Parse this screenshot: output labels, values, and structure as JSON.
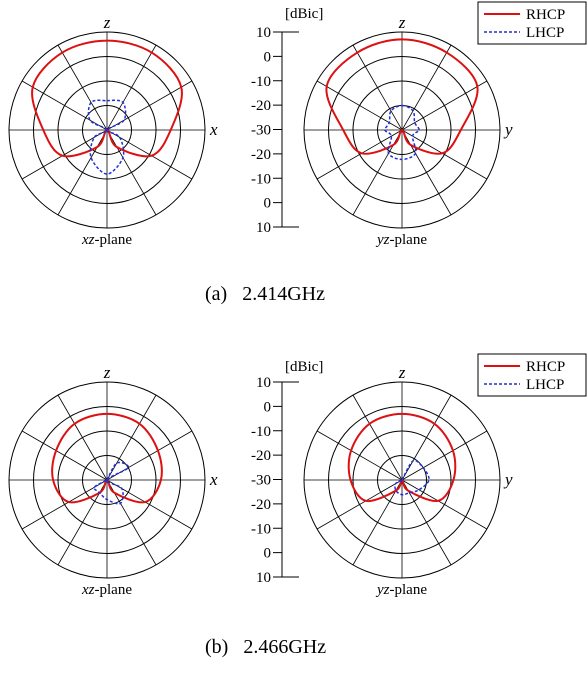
{
  "chart_data": [
    {
      "type": "polar",
      "panel": "(a)",
      "frequency": "2.414GHz",
      "caption": "(a)  2.414GHz",
      "unit": "[dBic]",
      "radial_ticks": [
        "10",
        "0",
        "-10",
        "-20",
        "-30",
        "-20",
        "-10",
        "0",
        "10"
      ],
      "radial_range": [
        -30,
        10
      ],
      "angular_spokes_deg": 30,
      "legend": {
        "placement": "top-right",
        "entries": [
          "RHCP",
          "LHCP"
        ]
      },
      "colors": {
        "RHCP": "#dd1111",
        "LHCP": "#1f2fd8"
      },
      "plots": [
        {
          "plane": "xz-plane",
          "vertical_axis": "z",
          "horizontal_axis": "x",
          "series": [
            {
              "name": "RHCP",
              "theta_deg": [
                0,
                30,
                60,
                90,
                120,
                150,
                180,
                210,
                240,
                270,
                300,
                330,
                360
              ],
              "gain_dbic": [
                6.5,
                6.5,
                5,
                -4,
                -9,
                -22,
                -30,
                -22,
                -9,
                -4,
                5,
                6.5,
                6.5
              ]
            },
            {
              "name": "LHCP",
              "theta_deg": [
                0,
                30,
                60,
                90,
                120,
                150,
                180,
                210,
                240,
                270,
                300,
                330,
                360
              ],
              "gain_dbic": [
                -18,
                -17,
                -22,
                -30,
                -24,
                -17,
                -12,
                -17,
                -24,
                -30,
                -22,
                -17,
                -18
              ]
            }
          ]
        },
        {
          "plane": "yz-plane",
          "vertical_axis": "z",
          "horizontal_axis": "y",
          "series": [
            {
              "name": "RHCP",
              "theta_deg": [
                0,
                30,
                60,
                90,
                120,
                150,
                180,
                210,
                240,
                270,
                300,
                330,
                360
              ],
              "gain_dbic": [
                7,
                6.5,
                5.5,
                -6,
                -11,
                -23,
                -30,
                -23,
                -11,
                -6,
                5.5,
                6.5,
                7
              ]
            },
            {
              "name": "LHCP",
              "theta_deg": [
                0,
                30,
                60,
                90,
                120,
                150,
                180,
                210,
                240,
                270,
                300,
                330,
                360
              ],
              "gain_dbic": [
                -20,
                -21,
                -24,
                -23,
                -25,
                -19,
                -18,
                -19,
                -25,
                -23,
                -24,
                -21,
                -20
              ]
            }
          ]
        }
      ]
    },
    {
      "type": "polar",
      "panel": "(b)",
      "frequency": "2.466GHz",
      "caption": "(b)  2.466GHz",
      "unit": "[dBic]",
      "radial_ticks": [
        "10",
        "0",
        "-10",
        "-20",
        "-30",
        "-20",
        "-10",
        "0",
        "10"
      ],
      "radial_range": [
        -30,
        10
      ],
      "angular_spokes_deg": 30,
      "legend": {
        "placement": "top-right",
        "entries": [
          "RHCP",
          "LHCP"
        ]
      },
      "colors": {
        "RHCP": "#dd1111",
        "LHCP": "#1f2fd8"
      },
      "plots": [
        {
          "plane": "xz-plane",
          "vertical_axis": "z",
          "horizontal_axis": "x",
          "series": [
            {
              "name": "RHCP",
              "theta_deg": [
                0,
                30,
                60,
                90,
                120,
                150,
                180,
                210,
                240,
                270,
                300,
                330,
                360
              ],
              "gain_dbic": [
                -3,
                -3.5,
                -6,
                -8,
                -12,
                -24,
                -30,
                -24,
                -12,
                -8,
                -6,
                -3.5,
                -3
              ]
            },
            {
              "name": "LHCP",
              "theta_deg": [
                0,
                30,
                60,
                90,
                120,
                150,
                180,
                210,
                240,
                270,
                300,
                330,
                360
              ],
              "gain_dbic": [
                -30,
                -22,
                -20,
                -30,
                -23,
                -19,
                -22,
                -24,
                -24,
                -30,
                -30,
                -30,
                -30
              ]
            }
          ]
        },
        {
          "plane": "yz-plane",
          "vertical_axis": "z",
          "horizontal_axis": "y",
          "series": [
            {
              "name": "RHCP",
              "theta_deg": [
                0,
                30,
                60,
                90,
                120,
                150,
                180,
                210,
                240,
                270,
                300,
                330,
                360
              ],
              "gain_dbic": [
                -3,
                -3.5,
                -6,
                -9,
                -13,
                -25,
                -30,
                -25,
                -13,
                -9,
                -6,
                -3.5,
                -3
              ]
            },
            {
              "name": "LHCP",
              "theta_deg": [
                0,
                30,
                60,
                90,
                120,
                150,
                180,
                210,
                240,
                270,
                300,
                330,
                360
              ],
              "gain_dbic": [
                -30,
                -21,
                -20,
                -19,
                -22,
                -24,
                -24,
                -25,
                -27,
                -30,
                -30,
                -30,
                -30
              ]
            }
          ]
        }
      ]
    }
  ]
}
